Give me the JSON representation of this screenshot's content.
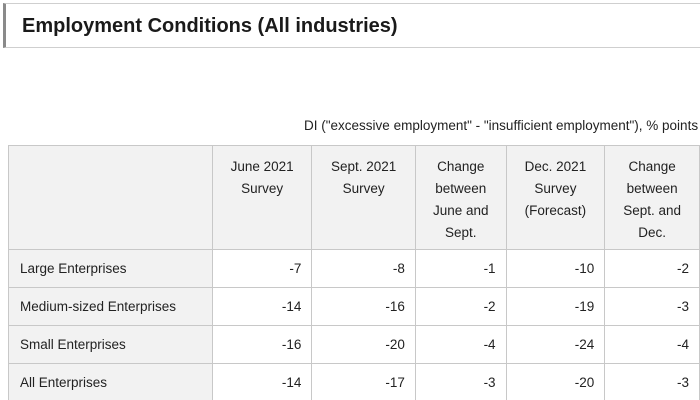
{
  "page": {
    "title": "Employment Conditions (All industries)",
    "note": "DI (\"excessive employment\" - \"insufficient employment\"), % points"
  },
  "table": {
    "columns": [
      {
        "lines": [
          "June 2021",
          "Survey"
        ]
      },
      {
        "lines": [
          "Sept. 2021",
          "Survey"
        ]
      },
      {
        "lines": [
          "Change",
          "between",
          "June and",
          "Sept."
        ]
      },
      {
        "lines": [
          "Dec. 2021",
          "Survey",
          "(Forecast)"
        ]
      },
      {
        "lines": [
          "Change",
          "between",
          "Sept. and",
          "Dec."
        ]
      }
    ],
    "rows": [
      {
        "label": "Large Enterprises",
        "values": [
          "-7",
          "-8",
          "-1",
          "-10",
          "-2"
        ]
      },
      {
        "label": "Medium-sized Enterprises",
        "values": [
          "-14",
          "-16",
          "-2",
          "-19",
          "-3"
        ]
      },
      {
        "label": "Small Enterprises",
        "values": [
          "-16",
          "-20",
          "-4",
          "-24",
          "-4"
        ]
      },
      {
        "label": "All Enterprises",
        "values": [
          "-14",
          "-17",
          "-3",
          "-20",
          "-3"
        ]
      }
    ]
  }
}
